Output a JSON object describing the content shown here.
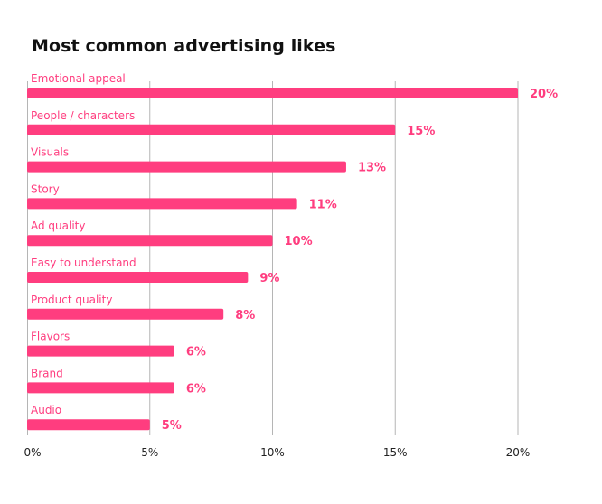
{
  "chart_data": {
    "type": "bar",
    "orientation": "horizontal",
    "title": "Most common advertising likes",
    "categories": [
      "Emotional appeal",
      "People / characters",
      "Visuals",
      "Story",
      "Ad quality",
      "Easy to understand",
      "Product quality",
      "Flavors",
      "Brand",
      "Audio"
    ],
    "values": [
      20,
      15,
      13,
      11,
      10,
      9,
      8,
      6,
      6,
      5
    ],
    "data_labels": [
      "20%",
      "15%",
      "13%",
      "11%",
      "10%",
      "9%",
      "8%",
      "6%",
      "6%",
      "5%"
    ],
    "xlim": [
      0,
      20
    ],
    "x_ticks": [
      0,
      5,
      10,
      15,
      20
    ],
    "x_tick_labels": [
      "0%",
      "5%",
      "10%",
      "15%",
      "20%"
    ],
    "grid": "vertical",
    "legend": "none",
    "colors": {
      "bar": "#ff3d7f",
      "label": "#ff3d7f",
      "grid": "#b5b5b5",
      "text": "#111111"
    }
  }
}
